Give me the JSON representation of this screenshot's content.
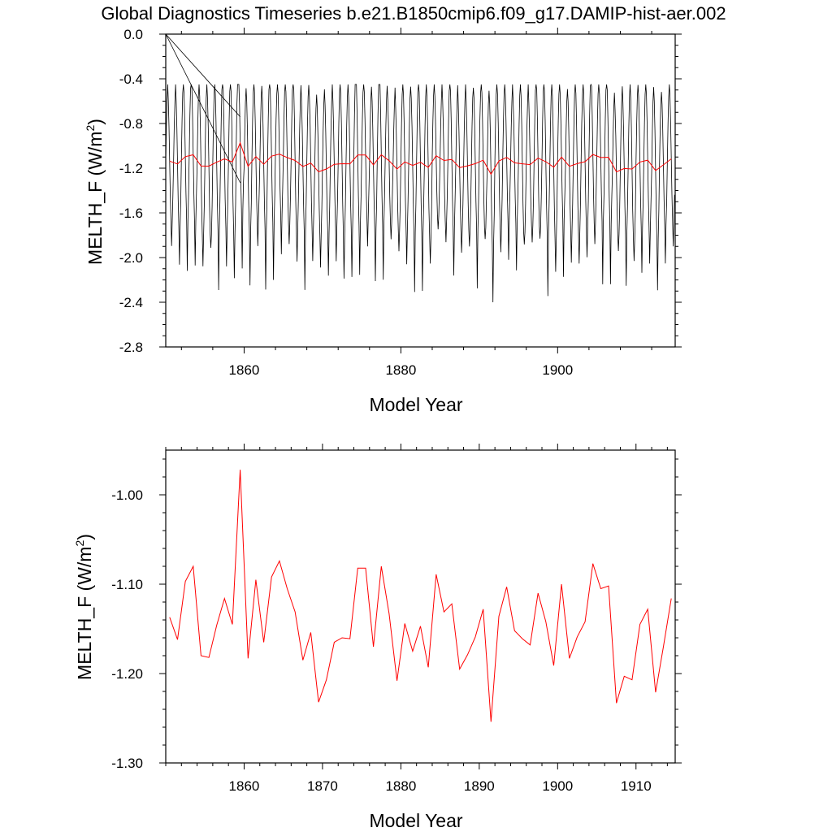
{
  "title": "Global Diagnostics Timeseries b.e21.B1850cmip6.f09_g17.DAMIP-hist-aer.002",
  "colors": {
    "monthly": "#000000",
    "annual": "#ff0000"
  },
  "chart_data": [
    {
      "type": "line",
      "xlabel": "Model Year",
      "ylabel_main": "MELTH_F (W/m",
      "ylabel_sup": "2",
      "ylabel_close": ")",
      "xlim": [
        1850,
        1915
      ],
      "ylim": [
        -2.8,
        0.0
      ],
      "xticks": [
        1860,
        1880,
        1900
      ],
      "xtick_labels": [
        "1860",
        "1880",
        "1900"
      ],
      "yticks": [
        0.0,
        -0.4,
        -0.8,
        -1.2,
        -1.6,
        -2.0,
        -2.4,
        -2.8
      ],
      "ytick_labels": [
        "0.0",
        "-0.4",
        "-0.8",
        "-1.2",
        "-1.6",
        "-2.0",
        "-2.4",
        "-2.8"
      ],
      "series": [
        {
          "style": "monthly",
          "seasonal_min": -1.95,
          "seasonal_max": -0.6,
          "note_artifacts": "lines from (1850,0.0) to (1859.5,-0.74) and (1859.5,-1.33)"
        },
        {
          "style": "annual",
          "x": [
            1850.5,
            1851.5,
            1852.5,
            1853.5,
            1854.5,
            1855.5,
            1856.5,
            1857.5,
            1858.5,
            1859.5,
            1860.5,
            1861.5,
            1862.5,
            1863.5,
            1864.5,
            1865.5,
            1866.5,
            1867.5,
            1868.5,
            1869.5,
            1870.5,
            1871.5,
            1872.5,
            1873.5,
            1874.5,
            1875.5,
            1876.5,
            1877.5,
            1878.5,
            1879.5,
            1880.5,
            1881.5,
            1882.5,
            1883.5,
            1884.5,
            1885.5,
            1886.5,
            1887.5,
            1888.5,
            1889.5,
            1890.5,
            1891.5,
            1892.5,
            1893.5,
            1894.5,
            1895.5,
            1896.5,
            1897.5,
            1898.5,
            1899.5,
            1900.5,
            1901.5,
            1902.5,
            1903.5,
            1904.5,
            1905.5,
            1906.5,
            1907.5,
            1908.5,
            1909.5,
            1910.5,
            1911.5,
            1912.5,
            1913.5,
            1914.5
          ]
        }
      ]
    },
    {
      "type": "line",
      "xlabel": "Model Year",
      "ylabel_main": "MELTH_F (W/m",
      "ylabel_sup": "2",
      "ylabel_close": ")",
      "xlim": [
        1850,
        1915
      ],
      "ylim": [
        -1.3,
        -0.95
      ],
      "xticks": [
        1860,
        1870,
        1880,
        1890,
        1900,
        1910
      ],
      "xtick_labels": [
        "1860",
        "1870",
        "1880",
        "1890",
        "1900",
        "1910"
      ],
      "yticks": [
        -1.0,
        -1.1,
        -1.2,
        -1.3
      ],
      "ytick_labels": [
        "-1.00",
        "-1.10",
        "-1.20",
        "-1.30"
      ],
      "series": [
        {
          "style": "annual",
          "x": [
            1850.5,
            1851.5,
            1852.5,
            1853.5,
            1854.5,
            1855.5,
            1856.5,
            1857.5,
            1858.5,
            1859.5,
            1860.5,
            1861.5,
            1862.5,
            1863.5,
            1864.5,
            1865.5,
            1866.5,
            1867.5,
            1868.5,
            1869.5,
            1870.5,
            1871.5,
            1872.5,
            1873.5,
            1874.5,
            1875.5,
            1876.5,
            1877.5,
            1878.5,
            1879.5,
            1880.5,
            1881.5,
            1882.5,
            1883.5,
            1884.5,
            1885.5,
            1886.5,
            1887.5,
            1888.5,
            1889.5,
            1890.5,
            1891.5,
            1892.5,
            1893.5,
            1894.5,
            1895.5,
            1896.5,
            1897.5,
            1898.5,
            1899.5,
            1900.5,
            1901.5,
            1902.5,
            1903.5,
            1904.5,
            1905.5,
            1906.5,
            1907.5,
            1908.5,
            1909.5,
            1910.5,
            1911.5,
            1912.5,
            1913.5,
            1914.5
          ],
          "values": [
            -1.137,
            -1.162,
            -1.097,
            -1.08,
            -1.18,
            -1.182,
            -1.146,
            -1.116,
            -1.145,
            -0.972,
            -1.183,
            -1.095,
            -1.165,
            -1.092,
            -1.074,
            -1.105,
            -1.131,
            -1.185,
            -1.154,
            -1.232,
            -1.207,
            -1.165,
            -1.16,
            -1.161,
            -1.082,
            -1.082,
            -1.17,
            -1.08,
            -1.133,
            -1.208,
            -1.144,
            -1.175,
            -1.147,
            -1.193,
            -1.089,
            -1.131,
            -1.122,
            -1.195,
            -1.179,
            -1.159,
            -1.128,
            -1.254,
            -1.136,
            -1.103,
            -1.152,
            -1.161,
            -1.168,
            -1.11,
            -1.142,
            -1.191,
            -1.1,
            -1.183,
            -1.159,
            -1.142,
            -1.077,
            -1.105,
            -1.102,
            -1.233,
            -1.203,
            -1.207,
            -1.145,
            -1.128,
            -1.221,
            -1.17,
            -1.116
          ]
        }
      ]
    }
  ]
}
